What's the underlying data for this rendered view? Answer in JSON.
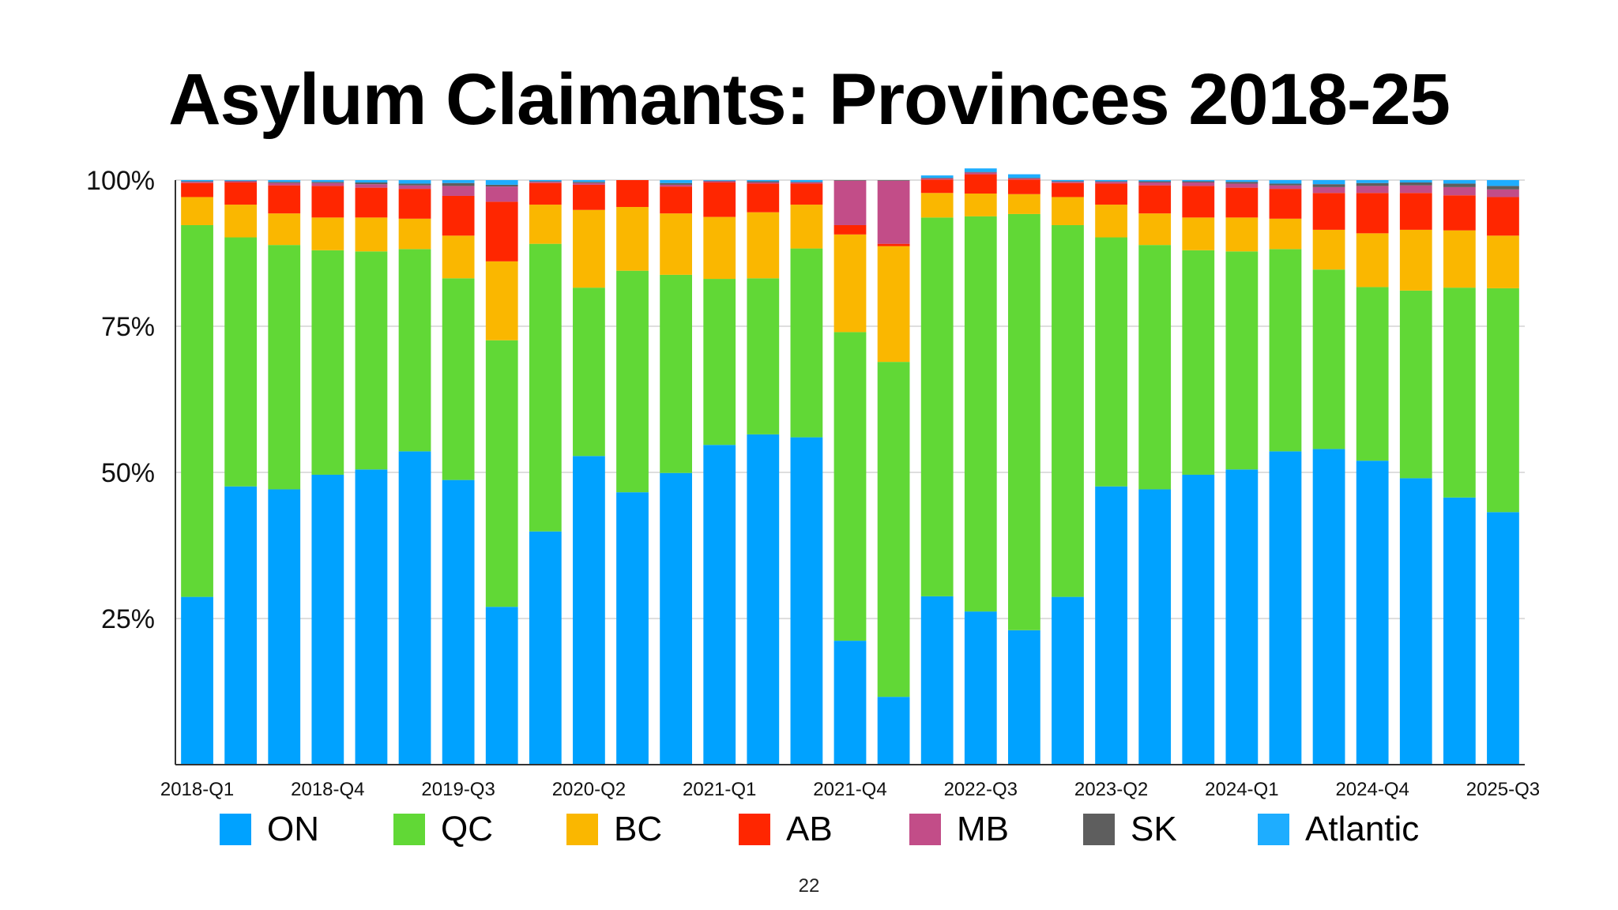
{
  "slide": {
    "page_number": "22"
  },
  "colors": {
    "ON": "#00A2FF",
    "QC": "#61D836",
    "BC": "#FAB700",
    "AB": "#FF2600",
    "MB": "#C24D88",
    "SK": "#5E5E5E",
    "Atlantic": "#1EADFF"
  },
  "chart_data": {
    "type": "bar",
    "stacked": true,
    "title": "Asylum Claimants: Provinces 2018-25",
    "xlabel": "",
    "ylabel": "",
    "ylim": [
      0,
      100
    ],
    "y_ticks": [
      "25%",
      "50%",
      "75%",
      "100%"
    ],
    "x_tick_labels": [
      "2018-Q1",
      "2018-Q4",
      "2019-Q3",
      "2020-Q2",
      "2021-Q1",
      "2021-Q4",
      "2022-Q3",
      "2023-Q2",
      "2024-Q1",
      "2024-Q4",
      "2025-Q3"
    ],
    "grid": true,
    "legend_position": "bottom",
    "categories": [
      "2018-Q1",
      "2018-Q2",
      "2018-Q3",
      "2018-Q4",
      "2019-Q1",
      "2019-Q2",
      "2019-Q3",
      "2019-Q4",
      "2020-Q1",
      "2020-Q2",
      "2020-Q3",
      "2020-Q4",
      "2021-Q1",
      "2021-Q2",
      "2021-Q3",
      "2021-Q4",
      "2022-Q1",
      "2022-Q2",
      "2022-Q3",
      "2022-Q4",
      "2023-Q1",
      "2023-Q2",
      "2023-Q3",
      "2023-Q4",
      "2024-Q1",
      "2024-Q2",
      "2024-Q3",
      "2024-Q4",
      "2025-Q1",
      "2025-Q2",
      "2025-Q3"
    ],
    "series": [
      {
        "name": "ON",
        "values": [
          28.7,
          47.6,
          47.1,
          49.6,
          50.5,
          53.6,
          48.7,
          27.0,
          39.9,
          52.8,
          46.6,
          49.9,
          54.7,
          56.5,
          56.0,
          21.2,
          11.6,
          28.8,
          26.2,
          23.0,
          28.7,
          47.6,
          47.1,
          49.6,
          50.5,
          53.6,
          54.0,
          52.0,
          49.0,
          45.7,
          43.2
        ]
      },
      {
        "name": "QC",
        "values": [
          63.6,
          42.6,
          41.8,
          38.4,
          37.3,
          34.6,
          34.5,
          45.6,
          49.2,
          28.8,
          37.9,
          33.9,
          28.4,
          26.7,
          32.3,
          52.8,
          57.3,
          64.8,
          67.6,
          71.2,
          63.6,
          42.6,
          41.8,
          38.4,
          37.3,
          34.6,
          30.7,
          29.7,
          32.1,
          35.9,
          38.3
        ]
      },
      {
        "name": "BC",
        "values": [
          4.8,
          5.6,
          5.4,
          5.6,
          5.8,
          5.2,
          7.3,
          13.5,
          6.7,
          13.3,
          10.9,
          10.5,
          10.6,
          11.3,
          7.5,
          16.7,
          19.8,
          4.2,
          3.9,
          3.4,
          4.8,
          5.6,
          5.4,
          5.6,
          5.8,
          5.2,
          6.8,
          9.2,
          10.4,
          9.8,
          9.0
        ]
      },
      {
        "name": "AB",
        "values": [
          2.4,
          3.8,
          4.8,
          5.4,
          5.1,
          5.1,
          6.8,
          10.2,
          3.7,
          4.3,
          4.6,
          4.6,
          5.9,
          4.9,
          3.6,
          1.6,
          0.4,
          2.3,
          3.3,
          2.5,
          2.4,
          3.6,
          4.8,
          5.4,
          5.1,
          5.1,
          6.3,
          6.9,
          6.3,
          6.0,
          6.6
        ]
      },
      {
        "name": "MB",
        "values": [
          0.2,
          0.2,
          0.4,
          0.5,
          0.6,
          0.6,
          1.7,
          2.6,
          0.2,
          0.3,
          0.0,
          0.3,
          0.2,
          0.2,
          0.2,
          7.6,
          10.8,
          0.2,
          0.3,
          0.2,
          0.2,
          0.3,
          0.5,
          0.6,
          0.7,
          0.6,
          1.0,
          1.2,
          1.3,
          1.4,
          1.3
        ]
      },
      {
        "name": "SK",
        "values": [
          0.1,
          0.1,
          0.2,
          0.2,
          0.3,
          0.3,
          0.5,
          0.3,
          0.1,
          0.2,
          0.0,
          0.3,
          0.1,
          0.2,
          0.1,
          0.1,
          0.1,
          0.1,
          0.1,
          0.1,
          0.1,
          0.1,
          0.2,
          0.2,
          0.3,
          0.3,
          0.5,
          0.5,
          0.5,
          0.6,
          0.6
        ]
      },
      {
        "name": "Atlantic",
        "values": [
          0.2,
          0.1,
          0.3,
          0.3,
          0.4,
          0.6,
          0.5,
          0.8,
          0.2,
          0.3,
          0.0,
          0.5,
          0.1,
          0.2,
          0.3,
          0.0,
          0.0,
          0.4,
          0.6,
          0.6,
          0.2,
          0.2,
          0.2,
          0.2,
          0.3,
          0.6,
          0.7,
          0.5,
          0.4,
          0.6,
          1.0
        ]
      }
    ]
  }
}
